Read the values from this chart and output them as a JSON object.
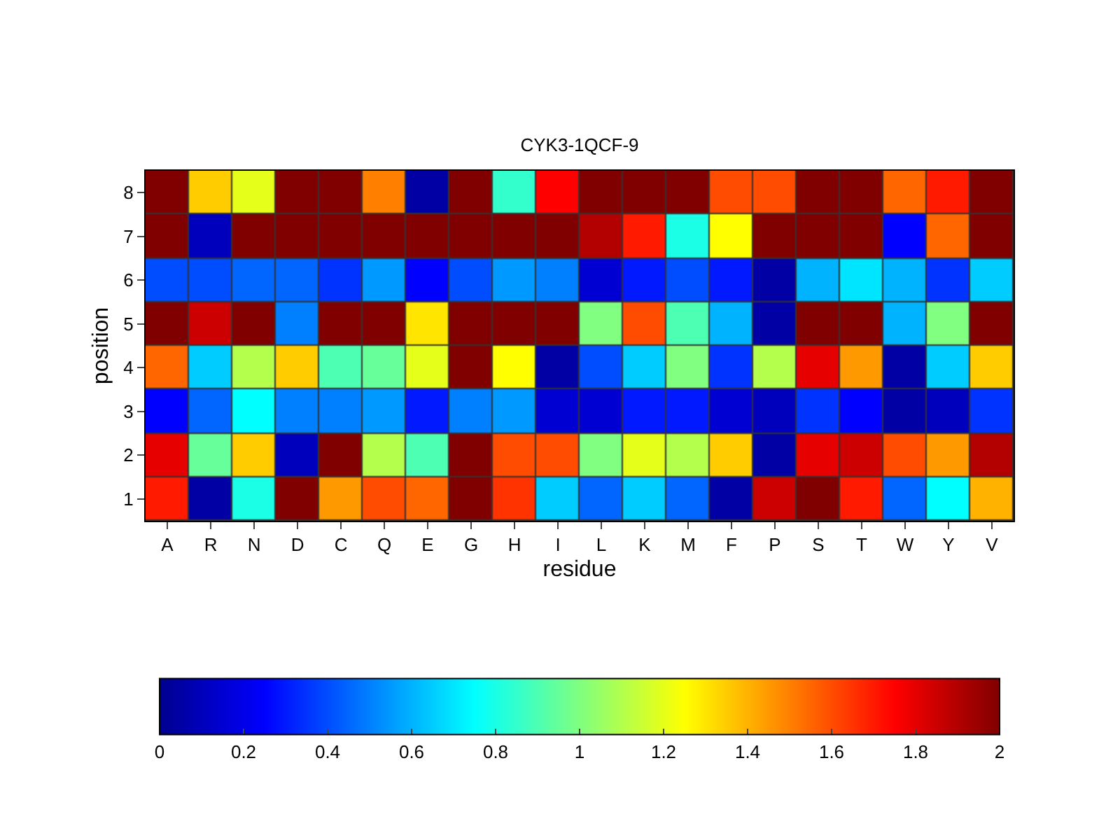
{
  "chart_data": {
    "type": "heatmap",
    "title": "CYK3-1QCF-9",
    "xlabel": "residue",
    "ylabel": "position",
    "categories": [
      "A",
      "R",
      "N",
      "D",
      "C",
      "Q",
      "E",
      "G",
      "H",
      "I",
      "L",
      "K",
      "M",
      "F",
      "P",
      "S",
      "T",
      "W",
      "Y",
      "V"
    ],
    "y_categories": [
      "8",
      "7",
      "6",
      "5",
      "4",
      "3",
      "2",
      "1"
    ],
    "cells": [
      [
        2.0,
        1.35,
        1.2,
        2.0,
        2.0,
        1.5,
        0.05,
        2.0,
        0.85,
        1.75,
        2.0,
        2.0,
        2.0,
        1.6,
        1.6,
        2.0,
        2.0,
        1.55,
        1.7,
        2.0
      ],
      [
        2.0,
        0.1,
        2.0,
        2.0,
        2.0,
        2.0,
        2.0,
        2.0,
        2.0,
        2.0,
        1.9,
        1.7,
        0.8,
        1.25,
        2.0,
        2.0,
        2.0,
        0.25,
        1.55,
        2.0
      ],
      [
        0.4,
        0.4,
        0.45,
        0.45,
        0.35,
        0.55,
        0.25,
        0.4,
        0.55,
        0.5,
        0.15,
        0.3,
        0.4,
        0.3,
        0.05,
        0.6,
        0.7,
        0.6,
        0.35,
        0.65
      ],
      [
        2.0,
        1.85,
        2.0,
        0.5,
        2.0,
        2.0,
        1.3,
        2.0,
        2.0,
        2.0,
        1.0,
        1.6,
        0.9,
        0.6,
        0.05,
        2.0,
        2.0,
        0.6,
        1.0,
        2.0
      ],
      [
        1.55,
        0.65,
        1.1,
        1.35,
        0.9,
        0.95,
        1.2,
        2.0,
        1.25,
        0.05,
        0.4,
        0.65,
        1.0,
        0.35,
        1.1,
        1.8,
        1.45,
        0.05,
        0.65,
        1.35
      ],
      [
        0.25,
        0.45,
        0.75,
        0.5,
        0.5,
        0.55,
        0.3,
        0.5,
        0.55,
        0.15,
        0.15,
        0.3,
        0.3,
        0.15,
        0.1,
        0.35,
        0.25,
        0.05,
        0.1,
        0.35
      ],
      [
        1.8,
        0.95,
        1.35,
        0.1,
        2.0,
        1.1,
        0.9,
        2.0,
        1.6,
        1.6,
        1.0,
        1.2,
        1.1,
        1.35,
        0.05,
        1.8,
        1.85,
        1.6,
        1.45,
        1.9
      ],
      [
        1.7,
        0.05,
        0.8,
        2.0,
        1.45,
        1.6,
        1.55,
        2.0,
        1.65,
        0.65,
        0.45,
        0.65,
        0.45,
        0.05,
        1.85,
        2.0,
        1.7,
        0.45,
        0.75,
        1.4
      ]
    ],
    "clim": [
      0,
      2
    ],
    "cticks": [
      0,
      0.2,
      0.4,
      0.6,
      0.8,
      1,
      1.2,
      1.4,
      1.6,
      1.8,
      2
    ]
  }
}
